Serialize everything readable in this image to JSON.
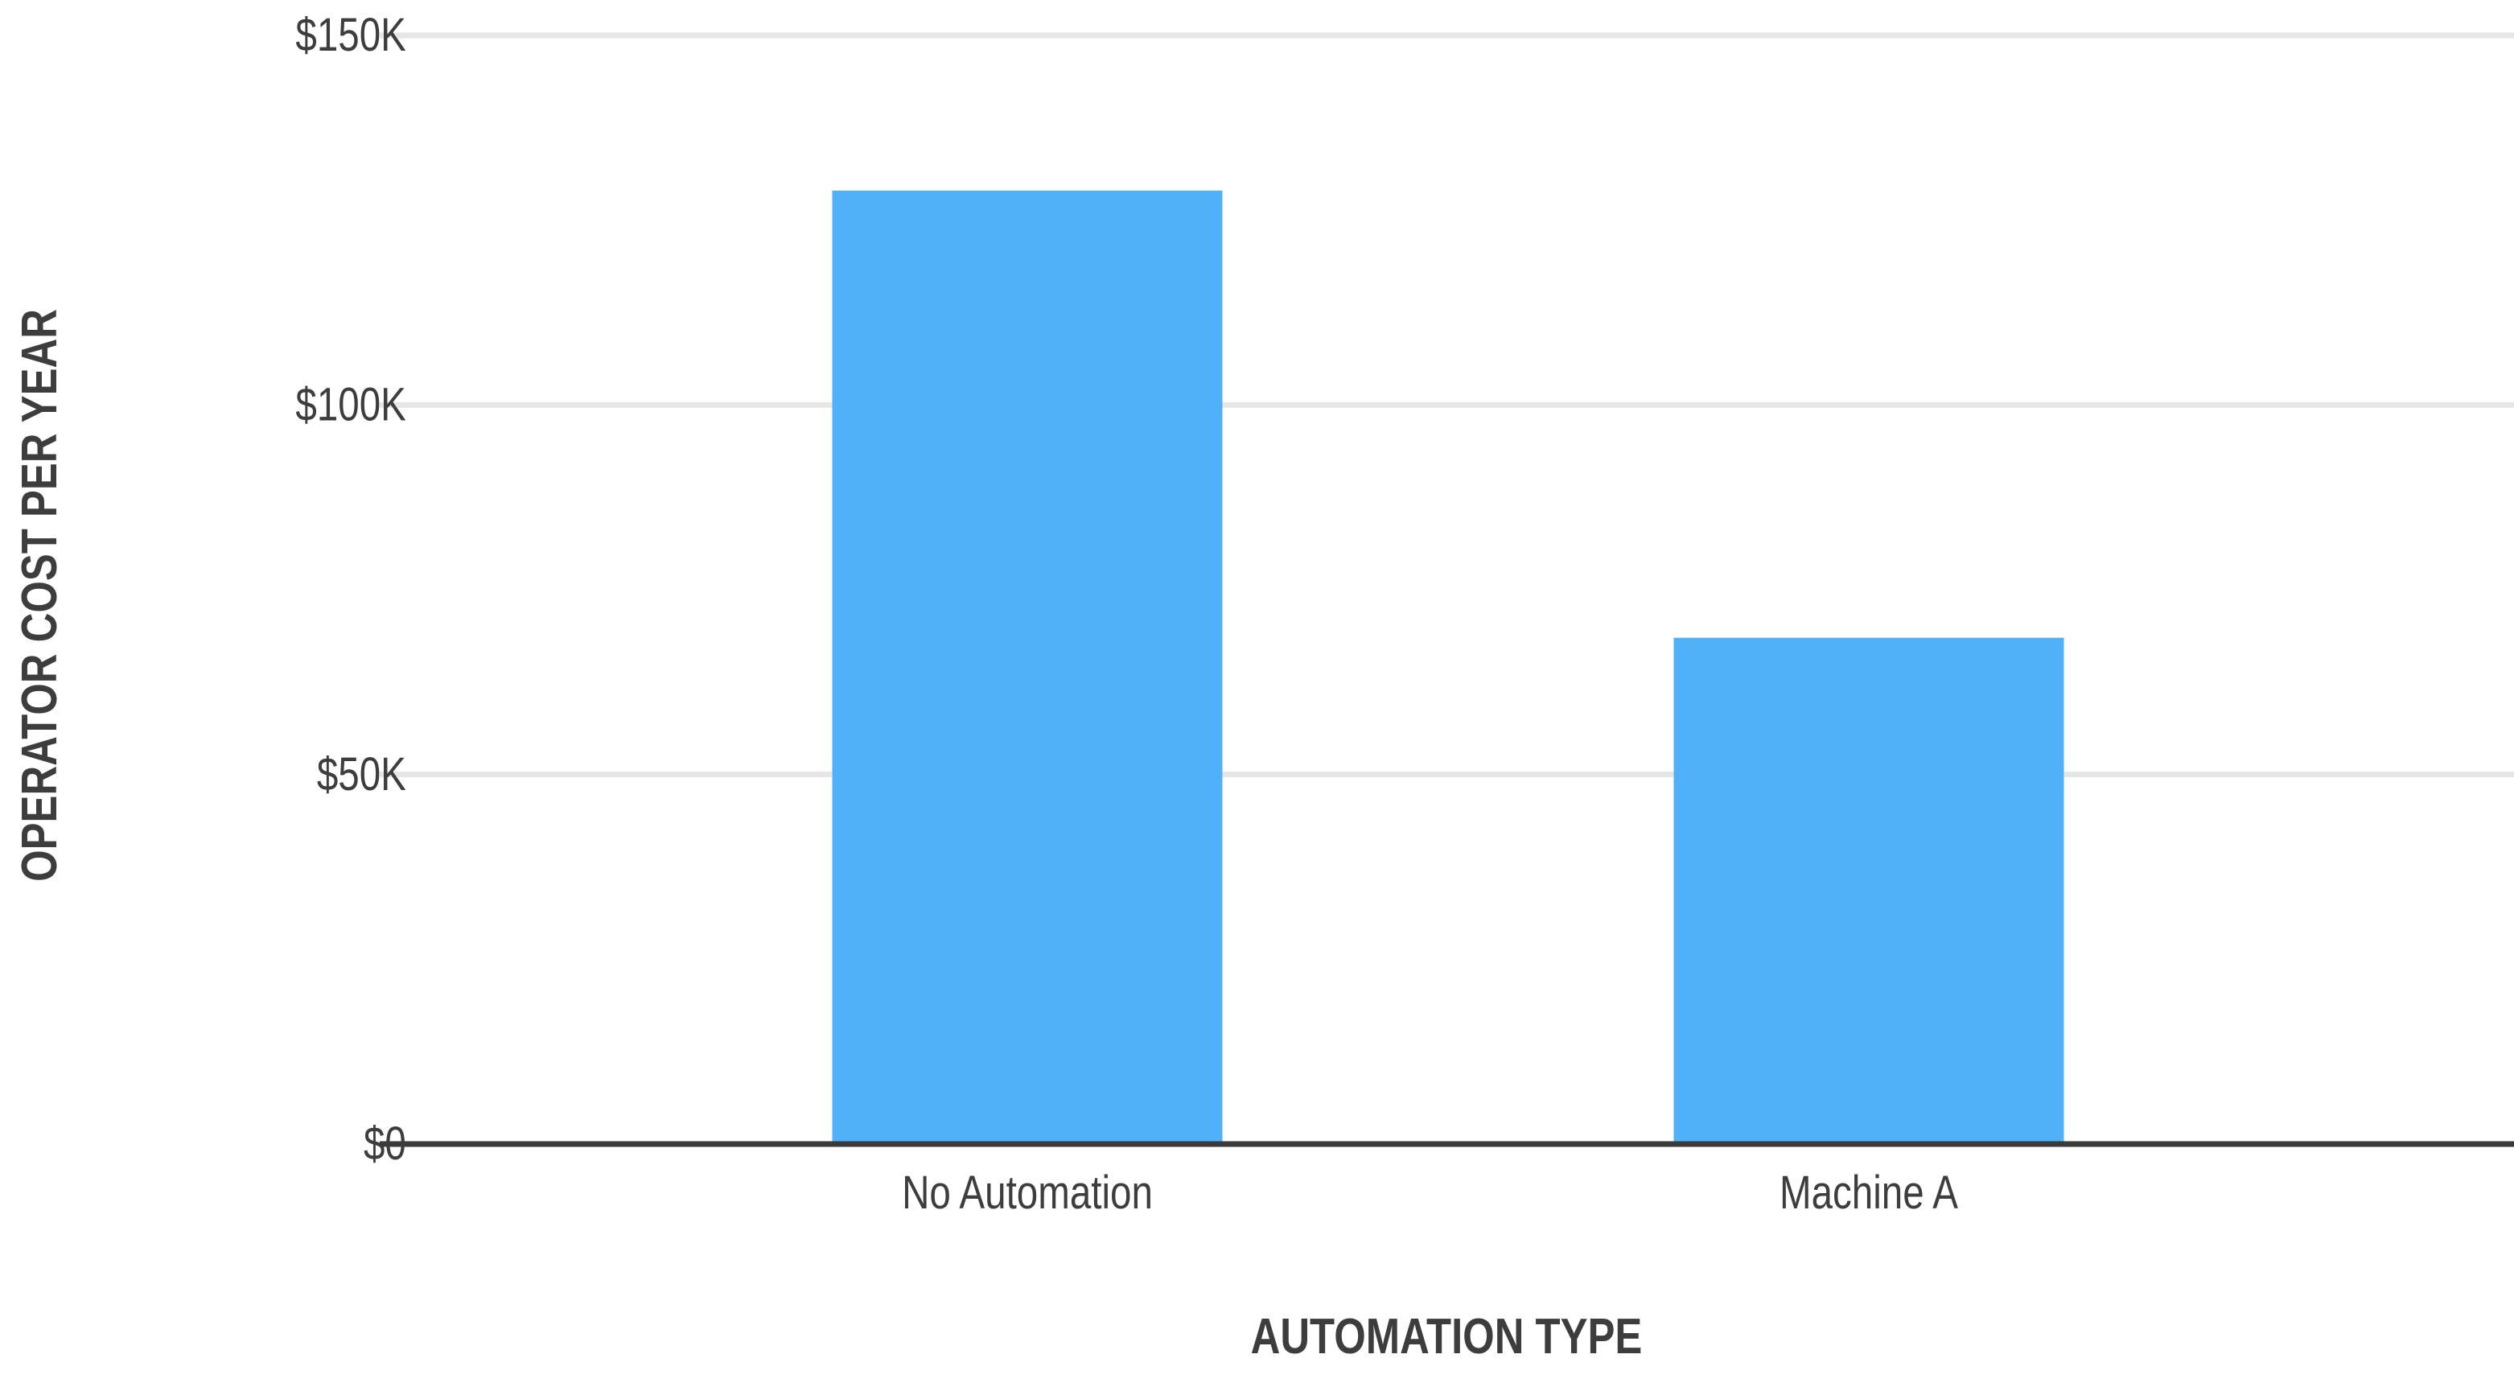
{
  "chart_data": {
    "type": "bar",
    "title": "",
    "xlabel": "AUTOMATION TYPE",
    "ylabel": "OPERATOR COST PER YEAR",
    "categories": [
      "No Automation",
      "Machine A"
    ],
    "values": [
      129000,
      68500
    ],
    "ylim": [
      0,
      150000
    ],
    "yticks": [
      {
        "value": 0,
        "label": "$0"
      },
      {
        "value": 50000,
        "label": "$50K"
      },
      {
        "value": 100000,
        "label": "$100K"
      },
      {
        "value": 150000,
        "label": "$150K"
      }
    ],
    "grid": true,
    "legend": "none",
    "bar_color": "#51b1f8"
  }
}
